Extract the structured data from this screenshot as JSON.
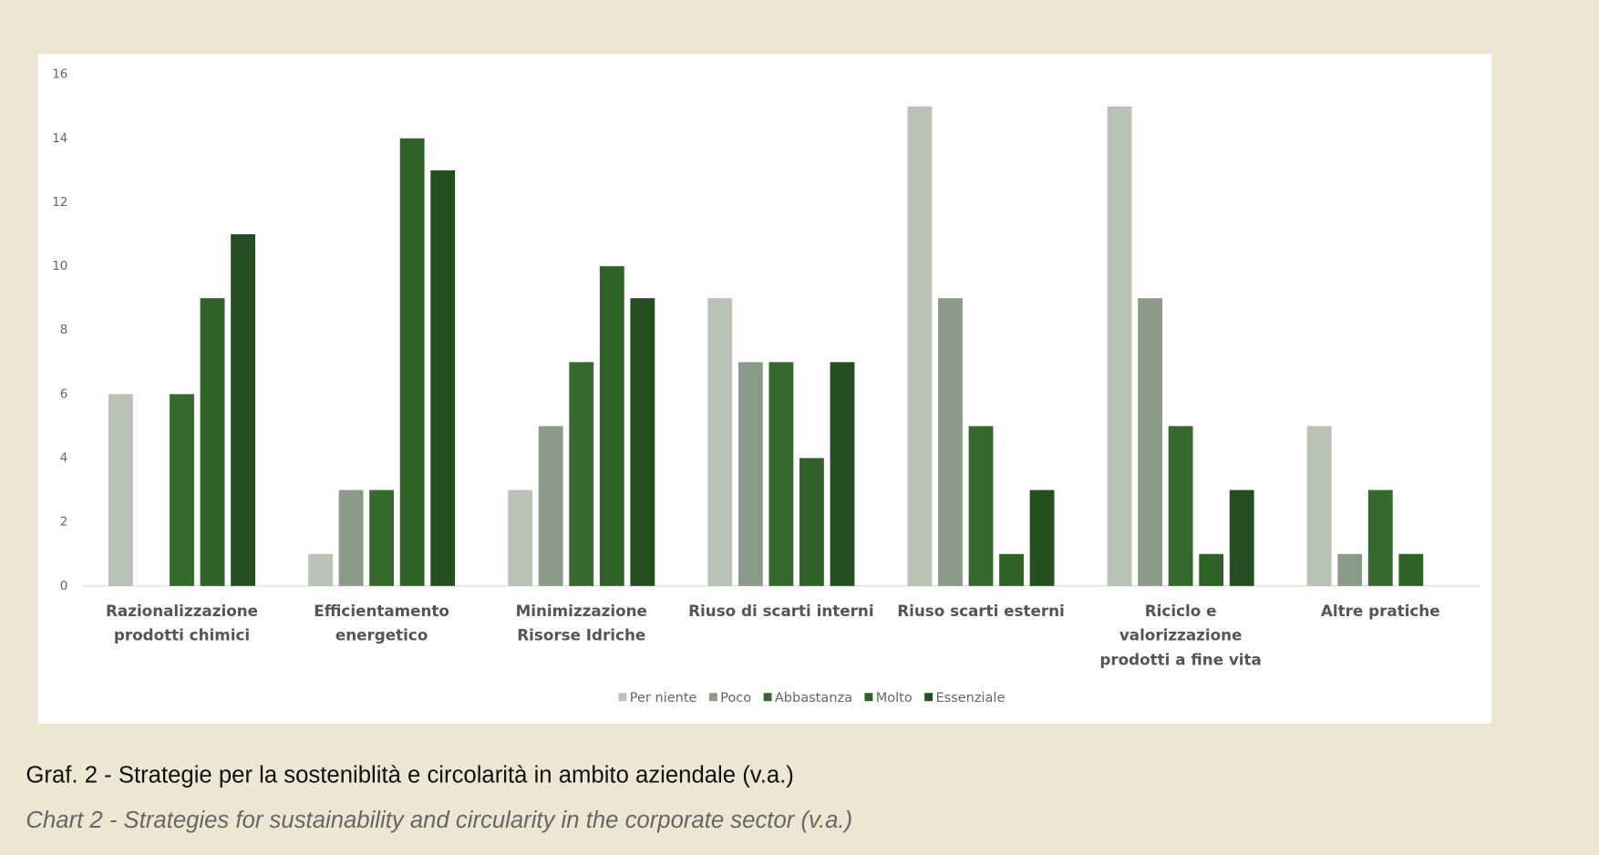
{
  "chart_data": {
    "type": "bar",
    "title": "Graf. 2 - Strategie per la sosteniblità e circolarità in ambito aziendale (v.a.)",
    "subtitle": "Chart 2 - Strategies for sustainability and circularity in the corporate sector (v.a.)",
    "categories": [
      "Razionalizzazione\nprodotti chimici",
      "Efficientamento\nenergetico",
      "Minimizzazione\nRisorse Idriche",
      "Riuso di scarti interni",
      "Riuso scarti esterni",
      "Riciclo e\nvalorizzazione\nprodotti a fine vita",
      "Altre pratiche"
    ],
    "series": [
      {
        "name": "Per niente",
        "color": "#b8c2b5",
        "values": [
          6,
          1,
          3,
          9,
          15,
          15,
          5
        ]
      },
      {
        "name": "Poco",
        "color": "#8a9c87",
        "values": [
          0,
          3,
          5,
          7,
          9,
          9,
          1
        ]
      },
      {
        "name": "Abbastanza",
        "color": "#35692d",
        "values": [
          6,
          3,
          7,
          7,
          5,
          5,
          3
        ]
      },
      {
        "name": "Molto",
        "color": "#2f6227",
        "values": [
          9,
          14,
          10,
          4,
          1,
          1,
          1
        ]
      },
      {
        "name": "Essenziale",
        "color": "#254f21",
        "values": [
          11,
          13,
          9,
          7,
          3,
          3,
          0
        ]
      }
    ],
    "ylim": [
      0,
      16
    ],
    "yticks": [
      0,
      2,
      4,
      6,
      8,
      10,
      12,
      14,
      16
    ],
    "grid": false,
    "legend": "bottom"
  }
}
